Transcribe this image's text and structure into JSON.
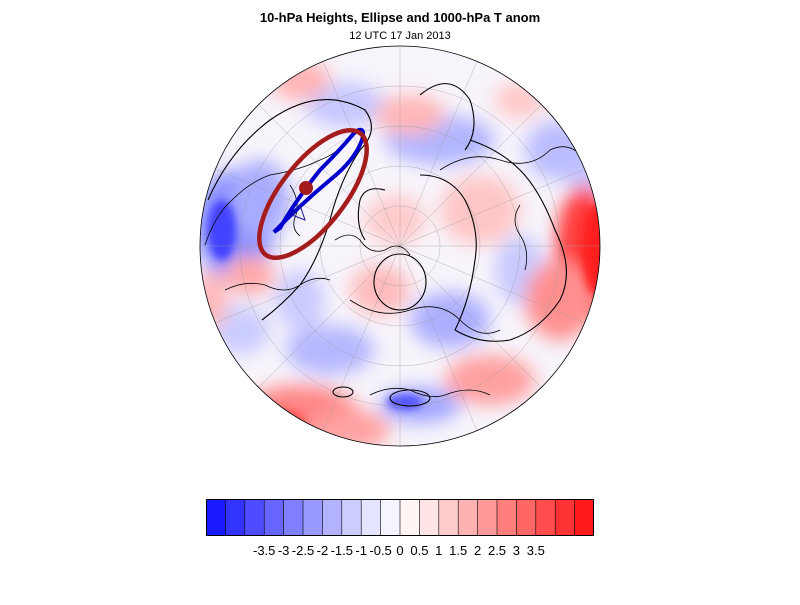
{
  "title": "10-hPa Heights, Ellipse and 1000-hPa T anom",
  "subtitle": "12 UTC 17 Jan 2013",
  "colorbar": {
    "colors": [
      "#1a1aff",
      "#3333ff",
      "#4d4dff",
      "#6666ff",
      "#7f7fff",
      "#9999ff",
      "#b2b2ff",
      "#ccccff",
      "#e5e5ff",
      "#f5f5ff",
      "#fff5f5",
      "#ffe5e5",
      "#ffcccc",
      "#ffb2b2",
      "#ff9999",
      "#ff7f7f",
      "#ff6666",
      "#ff4d4d",
      "#ff3333",
      "#ff1a1a"
    ],
    "labels": [
      "-3.5",
      "-3",
      "-2.5",
      "-2",
      "-1.5",
      "-1",
      "-0.5",
      "0",
      "0.5",
      "1",
      "1.5",
      "2",
      "2.5",
      "3",
      "3.5"
    ]
  },
  "map": {
    "ellipse_color": "#a51c1c",
    "blue_contour_color": "#0000cc",
    "contour_color": "#000000"
  }
}
